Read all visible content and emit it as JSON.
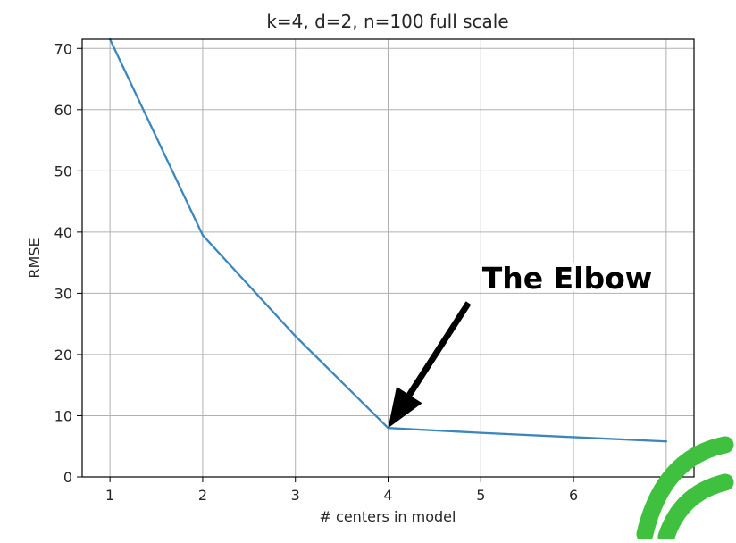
{
  "chart_data": {
    "type": "line",
    "title": "k=4, d=2, n=100 full scale",
    "xlabel": "# centers in model",
    "ylabel": "RMSE",
    "x": [
      1,
      2,
      3,
      4,
      5,
      6,
      7
    ],
    "series": [
      {
        "values": [
          71.5,
          39.5,
          23.0,
          8.0,
          7.2,
          6.5,
          5.8
        ]
      }
    ],
    "xlim": [
      0.7,
      7.3
    ],
    "ylim": [
      0,
      71.5
    ],
    "xticks": [
      1,
      2,
      3,
      4,
      5,
      6,
      7
    ],
    "yticks": [
      0,
      10,
      20,
      30,
      40,
      50,
      60,
      70
    ],
    "grid": true,
    "series_color": "#3b87bd",
    "annotation": {
      "text": "The Elbow",
      "target_x": 4,
      "target_y": 8.0
    },
    "watermark_color": "#3fc13f"
  }
}
